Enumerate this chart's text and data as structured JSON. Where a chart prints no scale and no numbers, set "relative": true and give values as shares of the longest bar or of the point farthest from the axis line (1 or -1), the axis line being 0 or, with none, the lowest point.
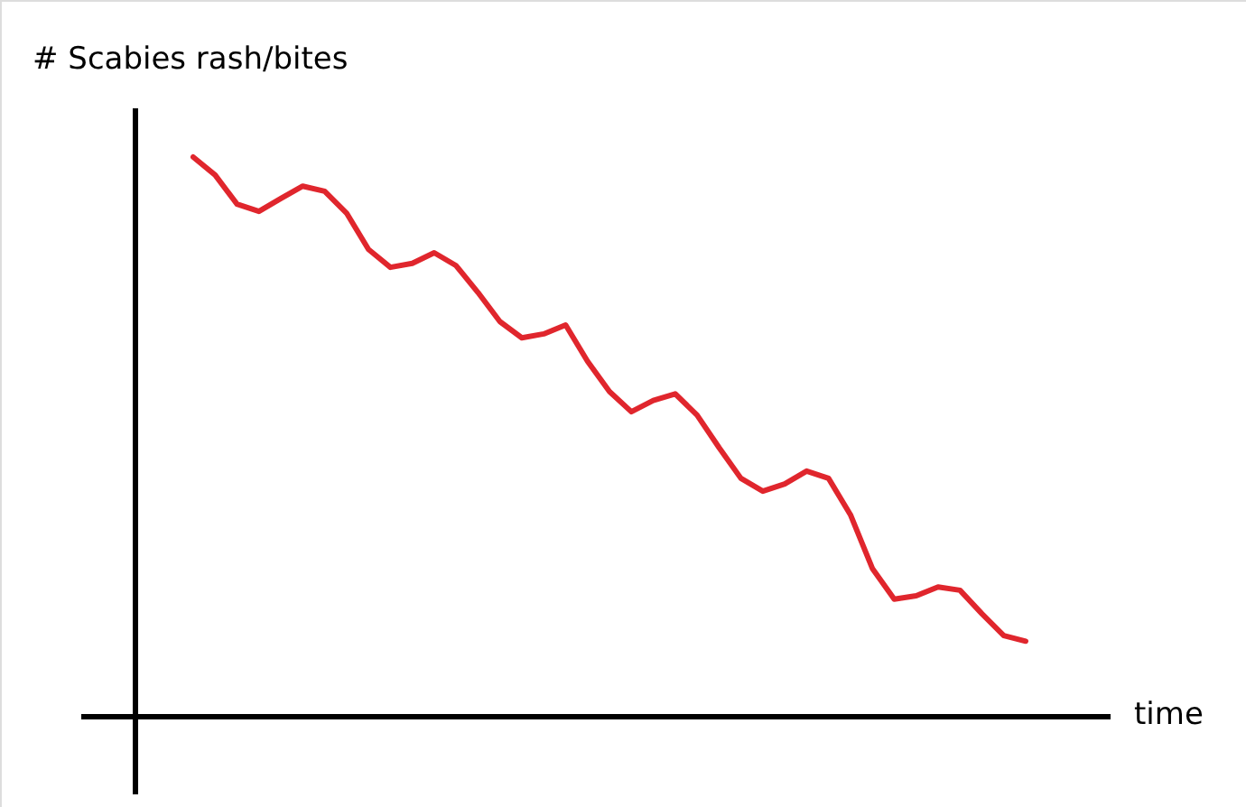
{
  "chart_data": {
    "type": "line",
    "relative": true,
    "xlabel": "time",
    "ylabel": "# Scabies rash/bites",
    "categories": [
      null,
      null,
      null,
      null,
      null,
      null,
      null,
      null,
      null,
      null,
      null,
      null,
      null,
      null,
      null,
      null,
      null,
      null,
      null,
      null,
      null,
      null,
      null,
      null,
      null,
      null,
      null,
      null,
      null,
      null,
      null,
      null,
      null,
      null,
      null,
      null,
      null,
      null,
      null
    ],
    "series": [
      {
        "color": "#e0262d",
        "values": [
          1,
          0.968,
          0.916,
          0.903,
          0.926,
          0.948,
          0.939,
          0.9,
          0.835,
          0.803,
          0.81,
          0.829,
          0.806,
          0.758,
          0.706,
          0.677,
          0.684,
          0.7,
          0.635,
          0.581,
          0.545,
          0.565,
          0.577,
          0.539,
          0.481,
          0.426,
          0.403,
          0.416,
          0.439,
          0.426,
          0.361,
          0.265,
          0.21,
          0.216,
          0.232,
          0.226,
          0.184,
          0.145,
          0.135
        ]
      }
    ]
  }
}
